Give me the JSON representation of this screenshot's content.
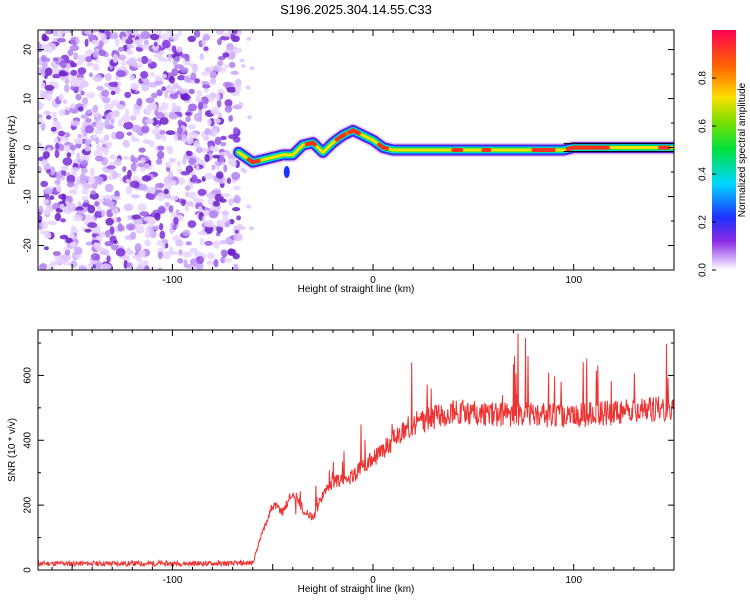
{
  "title": "S196.2025.304.14.55.C33",
  "chart_data": [
    {
      "type": "heatmap",
      "name": "spectrogram",
      "xlabel": "Height of straight line (km)",
      "ylabel": "Frequency (Hz)",
      "xlim": [
        -167,
        150
      ],
      "ylim": [
        -25,
        24
      ],
      "xticks": [
        -100,
        0,
        100
      ],
      "yticks": [
        -20,
        -10,
        0,
        10,
        20
      ],
      "noise_region_x": [
        -167,
        -67
      ],
      "ridge": {
        "x": [
          -67,
          -60,
          -55,
          -50,
          -45,
          -40,
          -35,
          -30,
          -25,
          -20,
          -15,
          -10,
          -5,
          0,
          5,
          10,
          20,
          40,
          60,
          80,
          95,
          100,
          120,
          150
        ],
        "freq": [
          -1,
          -3,
          -2.5,
          -2,
          -1.5,
          -1.5,
          0.5,
          1,
          -1,
          1,
          2.5,
          3.5,
          2.5,
          1.5,
          0,
          -0.5,
          -0.5,
          -0.5,
          -0.5,
          -0.5,
          -0.5,
          0,
          0,
          0
        ]
      },
      "colorbar": {
        "label": "Normalized spectral amplitude",
        "range": [
          0,
          1
        ],
        "ticks": [
          "0.0",
          "0.2",
          "0.4",
          "0.6",
          "0.8"
        ]
      }
    },
    {
      "type": "line",
      "name": "snr",
      "xlabel": "Height of straight line (km)",
      "ylabel": "SNR (10 * v/v)",
      "xlim": [
        -167,
        150
      ],
      "ylim": [
        0,
        740
      ],
      "xticks": [
        -100,
        0,
        100
      ],
      "yticks": [
        0,
        200,
        400,
        600
      ],
      "color": "#ee3333",
      "envelope": {
        "x": [
          -167,
          -70,
          -60,
          -55,
          -50,
          -45,
          -40,
          -35,
          -30,
          -25,
          -20,
          -15,
          -10,
          -5,
          0,
          5,
          10,
          15,
          20,
          30,
          40,
          60,
          80,
          100,
          120,
          150
        ],
        "y": [
          20,
          20,
          22,
          120,
          200,
          180,
          240,
          190,
          160,
          230,
          270,
          280,
          290,
          320,
          340,
          370,
          400,
          430,
          450,
          470,
          490,
          480,
          480,
          475,
          485,
          500
        ]
      }
    }
  ]
}
